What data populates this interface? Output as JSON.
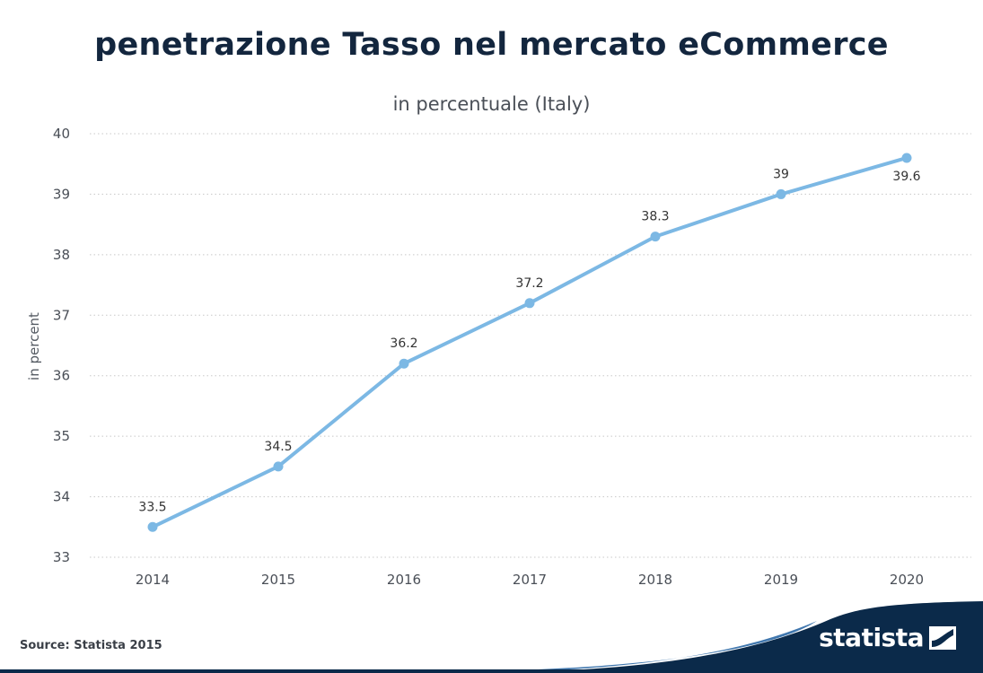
{
  "header": {
    "title": "penetrazione Tasso nel mercato eCommerce",
    "subtitle": "in percentuale (Italy)"
  },
  "footer": {
    "source": "Source: Statista 2015",
    "brand": "statista",
    "brand_icon": "statista-logo-icon"
  },
  "colors": {
    "line": "#7cb8e4",
    "grid": "#c8c8c8",
    "title": "#13263e",
    "brand_dark": "#0b2a4a"
  },
  "chart_data": {
    "type": "line",
    "title": "penetrazione Tasso nel mercato eCommerce",
    "subtitle": "in percentuale (Italy)",
    "xlabel": "",
    "ylabel": "in percent",
    "categories": [
      "2014",
      "2015",
      "2016",
      "2017",
      "2018",
      "2019",
      "2020"
    ],
    "series": [
      {
        "values": [
          33.5,
          34.5,
          36.2,
          37.2,
          38.3,
          39,
          39.6
        ]
      }
    ],
    "data_labels": [
      "33.5",
      "34.5",
      "36.2",
      "37.2",
      "38.3",
      "39",
      "39.6"
    ],
    "yticks": [
      "33",
      "34",
      "35",
      "36",
      "37",
      "38",
      "39",
      "40"
    ],
    "ylim": [
      33,
      40
    ],
    "grid": true,
    "legend": "none"
  }
}
